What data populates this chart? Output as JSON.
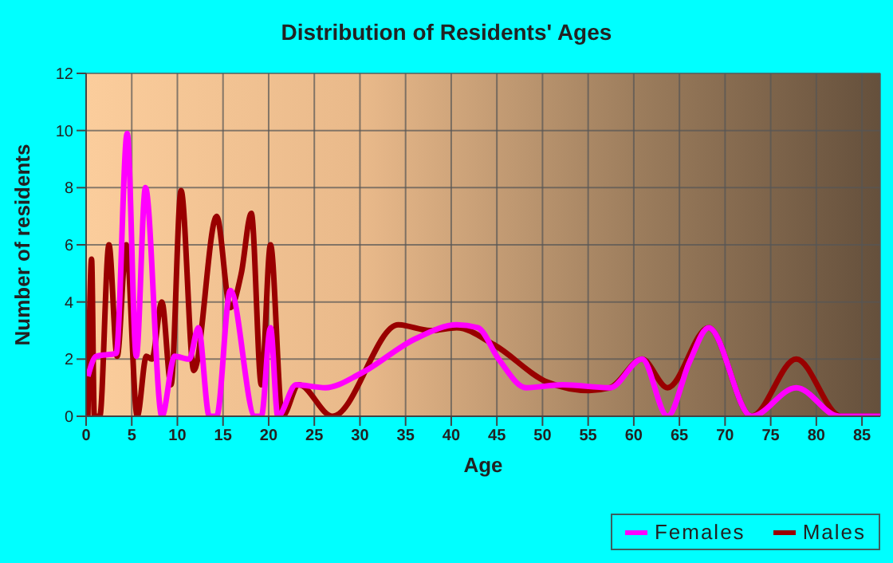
{
  "chart_data": {
    "type": "line",
    "title": "Distribution of Residents' Ages",
    "xlabel": "Age",
    "ylabel": "Number of residents",
    "xlim": [
      0,
      87
    ],
    "xticks": [
      0,
      5,
      10,
      15,
      20,
      25,
      30,
      35,
      40,
      45,
      50,
      55,
      60,
      65,
      70,
      75,
      80,
      85
    ],
    "ylim": [
      0,
      12
    ],
    "yticks": [
      0,
      2,
      4,
      6,
      8,
      10,
      12
    ],
    "grid": true,
    "legend": "bottom right",
    "marker": "none",
    "series": [
      {
        "name": "Males",
        "color": "#990000",
        "x": [
          0.2,
          0.6,
          0.9,
          1.5,
          2.5,
          3.4,
          4.4,
          5.6,
          6.6,
          7.2,
          8.3,
          9.3,
          10.4,
          11.8,
          14.3,
          15.8,
          17,
          18.1,
          19.2,
          20.2,
          21.5,
          23.3,
          27,
          34.2,
          37.7,
          40.6,
          44.7,
          50.5,
          55.1,
          57.4,
          60.9,
          63.7,
          68.2,
          72.9,
          77.8,
          82.7,
          87
        ],
        "values": [
          0,
          5.5,
          0,
          0,
          6,
          2.1,
          6,
          0,
          2.1,
          2,
          4,
          1.1,
          7.9,
          1.6,
          7,
          3.8,
          5,
          7.1,
          1.1,
          6,
          0,
          1.1,
          0,
          3.2,
          3,
          3.1,
          2.5,
          1.2,
          0.9,
          1,
          2,
          1,
          3.1,
          0,
          2,
          0,
          0
        ]
      },
      {
        "name": "Females",
        "color": "#ff00ff",
        "x": [
          0.2,
          1.1,
          3.3,
          4.5,
          5.5,
          6.5,
          8.3,
          9.7,
          11.3,
          12.3,
          13.5,
          14.3,
          15.8,
          18.5,
          19.2,
          20.2,
          21,
          23,
          26.2,
          30.1,
          36,
          40.6,
          42.9,
          45.2,
          48.2,
          52.2,
          57.4,
          60.9,
          63.7,
          66.1,
          68.2,
          72.9,
          77.8,
          82.5,
          87
        ],
        "values": [
          1.4,
          2.1,
          2.2,
          9.9,
          2.1,
          8,
          0,
          2.1,
          2,
          3.1,
          0,
          0,
          4.4,
          0,
          0,
          3.1,
          0,
          1.1,
          1,
          1.5,
          2.7,
          3.2,
          3.1,
          2,
          1,
          1.1,
          1,
          2,
          0,
          1.9,
          3.1,
          0,
          1,
          0,
          0
        ]
      }
    ]
  }
}
